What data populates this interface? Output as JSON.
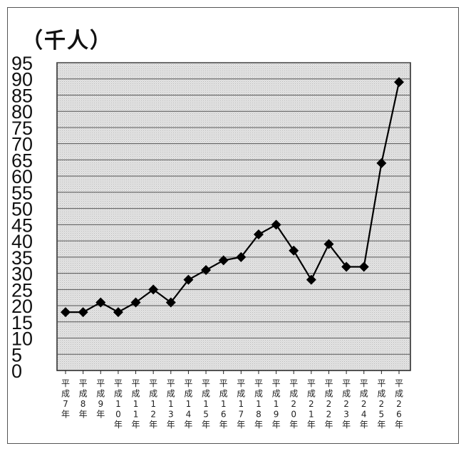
{
  "chart_data": {
    "type": "line",
    "unit_label": "（千人）",
    "y_ticks": [
      "95",
      "90",
      "85",
      "80",
      "75",
      "70",
      "65",
      "60",
      "55",
      "50",
      "45",
      "40",
      "35",
      "30",
      "25",
      "20",
      "15",
      "10",
      "5",
      "0"
    ],
    "ylim": [
      0,
      95
    ],
    "categories": [
      "平成7年",
      "平成8年",
      "平成9年",
      "平成10年",
      "平成11年",
      "平成12年",
      "平成13年",
      "平成14年",
      "平成15年",
      "平成16年",
      "平成17年",
      "平成18年",
      "平成19年",
      "平成20年",
      "平成21年",
      "平成22年",
      "平成23年",
      "平成24年",
      "平成25年",
      "平成26年"
    ],
    "series": [
      {
        "values": [
          18,
          18,
          21,
          18,
          21,
          25,
          21,
          28,
          31,
          34,
          35,
          42,
          45,
          37,
          28,
          39,
          32,
          32,
          64,
          89
        ]
      }
    ],
    "grid": true,
    "colors": {
      "line": "#000000",
      "plot_background": "#d9d9d9",
      "grid": "#555555"
    }
  }
}
